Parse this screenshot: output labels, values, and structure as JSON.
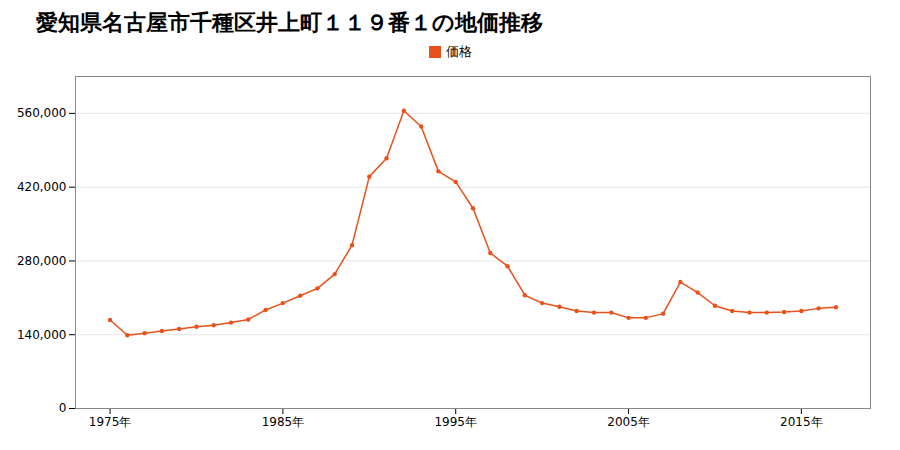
{
  "chart_data": {
    "type": "line",
    "title": "愛知県名古屋市千種区井上町１１９番１の地価推移",
    "x": [
      1975,
      1976,
      1977,
      1978,
      1979,
      1980,
      1981,
      1982,
      1983,
      1984,
      1985,
      1986,
      1987,
      1988,
      1989,
      1990,
      1991,
      1992,
      1993,
      1994,
      1995,
      1996,
      1997,
      1998,
      1999,
      2000,
      2001,
      2002,
      2003,
      2004,
      2005,
      2006,
      2007,
      2008,
      2009,
      2010,
      2011,
      2012,
      2013,
      2014,
      2015,
      2016,
      2017
    ],
    "series": [
      {
        "name": "価格",
        "color": "#e8521a",
        "marker": "circle",
        "values": [
          168000,
          139000,
          143000,
          147000,
          151000,
          155000,
          158000,
          163000,
          169000,
          187000,
          200000,
          214000,
          228000,
          255000,
          310000,
          440000,
          475000,
          565000,
          535000,
          450000,
          430000,
          380000,
          295000,
          270000,
          215000,
          200000,
          193000,
          185000,
          182000,
          182000,
          172000,
          172000,
          180000,
          240000,
          220000,
          195000,
          185000,
          182000,
          182000,
          183000,
          185000,
          190000,
          192000
        ]
      }
    ],
    "xlim": [
      1973,
      2019
    ],
    "xticks": [
      {
        "value": 1975,
        "label": "1975年"
      },
      {
        "value": 1985,
        "label": "1985年"
      },
      {
        "value": 1995,
        "label": "1995年"
      },
      {
        "value": 2005,
        "label": "2005年"
      },
      {
        "value": 2015,
        "label": "2015年"
      }
    ],
    "ylim": [
      0,
      630000
    ],
    "yticks": [
      0,
      {
        "value": 140000,
        "label": "140,000"
      },
      {
        "value": 280000,
        "label": "280,000"
      },
      {
        "value": 420000,
        "label": "420,000"
      },
      {
        "value": 560000,
        "label": "560,000"
      }
    ],
    "grid": true,
    "legend": "top"
  }
}
